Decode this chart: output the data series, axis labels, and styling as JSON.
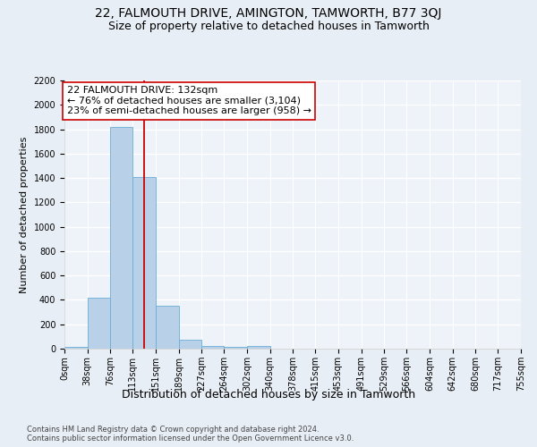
{
  "title": "22, FALMOUTH DRIVE, AMINGTON, TAMWORTH, B77 3QJ",
  "subtitle": "Size of property relative to detached houses in Tamworth",
  "xlabel": "Distribution of detached houses by size in Tamworth",
  "ylabel": "Number of detached properties",
  "footer_line1": "Contains HM Land Registry data © Crown copyright and database right 2024.",
  "footer_line2": "Contains public sector information licensed under the Open Government Licence v3.0.",
  "bin_edges": [
    0,
    38,
    76,
    113,
    151,
    189,
    227,
    264,
    302,
    340,
    378,
    415,
    453,
    491,
    529,
    566,
    604,
    642,
    680,
    717,
    755
  ],
  "bar_heights": [
    15,
    420,
    1820,
    1410,
    350,
    75,
    25,
    18,
    25,
    0,
    0,
    0,
    0,
    0,
    0,
    0,
    0,
    0,
    0,
    0
  ],
  "bar_color": "#b8d0e8",
  "bar_edge_color": "#6aaed6",
  "property_size": 132,
  "vline_color": "#cc0000",
  "annotation_line1": "22 FALMOUTH DRIVE: 132sqm",
  "annotation_line2": "← 76% of detached houses are smaller (3,104)",
  "annotation_line3": "23% of semi-detached houses are larger (958) →",
  "annotation_box_color": "#ffffff",
  "annotation_box_edge": "#cc0000",
  "ylim": [
    0,
    2200
  ],
  "yticks": [
    0,
    200,
    400,
    600,
    800,
    1000,
    1200,
    1400,
    1600,
    1800,
    2000,
    2200
  ],
  "bg_color": "#e8eef5",
  "plot_bg_color": "#eef3f9",
  "grid_color": "#ffffff",
  "title_fontsize": 10,
  "subtitle_fontsize": 9,
  "xlabel_fontsize": 9,
  "ylabel_fontsize": 8,
  "tick_fontsize": 7,
  "footer_fontsize": 6,
  "annot_fontsize": 8
}
